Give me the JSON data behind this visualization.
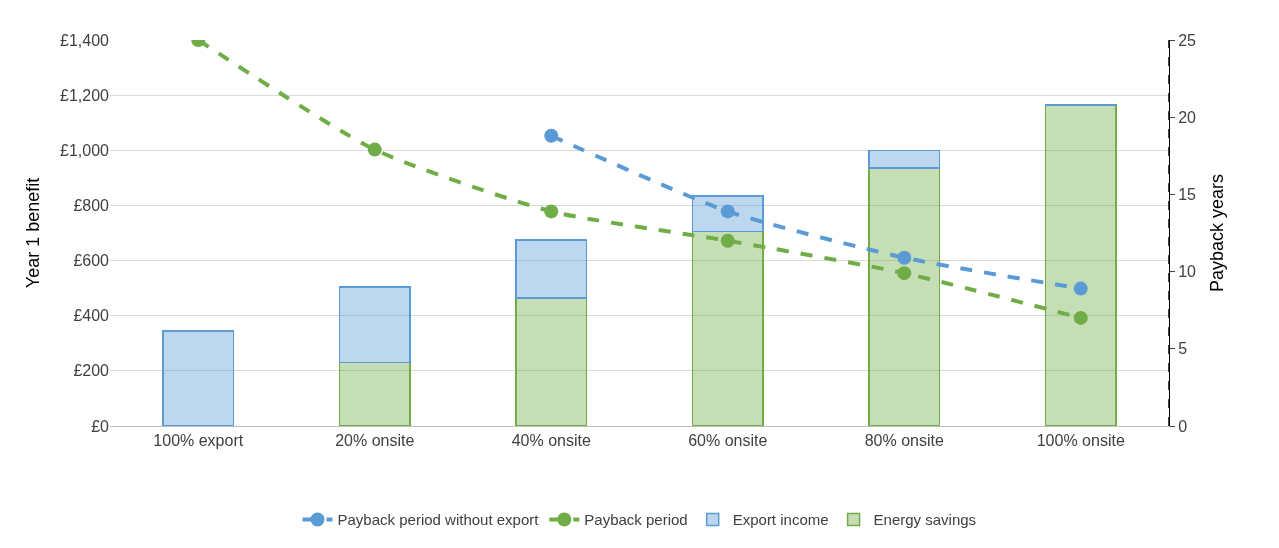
{
  "chart_data": {
    "type": "bar",
    "stacked": true,
    "ylabel": "Year 1 benefit",
    "y2label": "Payback years",
    "categories": [
      "100% export",
      "20% onsite",
      "40% onsite",
      "60% onsite",
      "80% onsite",
      "100% onsite"
    ],
    "series": [
      {
        "name": "Energy savings",
        "color": "#70ad47",
        "values": [
          0,
          230,
          465,
          705,
          935,
          1165
        ]
      },
      {
        "name": "Export income",
        "color": "#5b9bd5",
        "values": [
          345,
          275,
          210,
          130,
          65,
          0
        ]
      },
      {
        "name": "Payback period",
        "type": "line",
        "axis": "y2",
        "color": "#70ad47",
        "line_style": "dashed",
        "marker": "circle",
        "values": [
          25,
          17.9,
          13.9,
          12,
          9.9,
          7
        ]
      },
      {
        "name": "Payback period without export",
        "type": "line",
        "axis": "y2",
        "color": "#5b9bd5",
        "line_style": "dashed",
        "marker": "circle",
        "values": [
          null,
          null,
          18.8,
          13.9,
          10.9,
          8.9
        ]
      }
    ],
    "ylim": [
      0,
      1400
    ],
    "yticks": [
      {
        "value": 0,
        "label": "£0"
      },
      {
        "value": 200,
        "label": "£200"
      },
      {
        "value": 400,
        "label": "£400"
      },
      {
        "value": 600,
        "label": "£600"
      },
      {
        "value": 800,
        "label": "£800"
      },
      {
        "value": 1000,
        "label": "£1,000"
      },
      {
        "value": 1200,
        "label": "£1,200"
      },
      {
        "value": 1400,
        "label": "£1,400"
      }
    ],
    "y2lim": [
      0,
      25
    ],
    "y2ticks": [
      0,
      5,
      10,
      15,
      20,
      25
    ],
    "grid": "y",
    "legend": "bottom"
  }
}
